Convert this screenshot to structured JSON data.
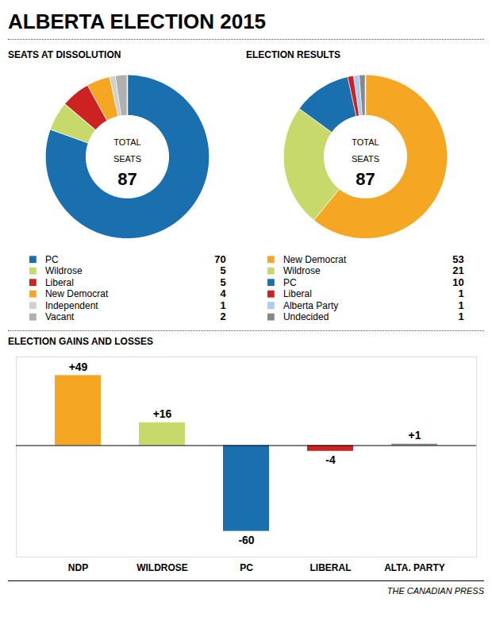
{
  "title": "ALBERTA ELECTION 2015",
  "caption": "THE CANADIAN PRESS",
  "chart_data": [
    {
      "type": "pie",
      "title": "SEATS AT DISSOLUTION",
      "categories": [
        "PC",
        "Wildrose",
        "Liberal",
        "New Democrat",
        "Independent",
        "Vacant"
      ],
      "values": [
        70,
        5,
        5,
        4,
        1,
        2
      ],
      "colors": [
        "#1a6faf",
        "#c8d96b",
        "#cc2222",
        "#f5a623",
        "#d0d0d0",
        "#b0b0b0"
      ],
      "data_labels": true,
      "annotations": [
        "TOTAL",
        "SEATS",
        "87"
      ]
    },
    {
      "type": "pie",
      "title": "ELECTION RESULTS",
      "categories": [
        "New Democrat",
        "Wildrose",
        "PC",
        "Liberal",
        "Alberta Party",
        "Undecided"
      ],
      "values": [
        53,
        21,
        10,
        1,
        1,
        1
      ],
      "colors": [
        "#f5a623",
        "#c8d96b",
        "#1a6faf",
        "#cc2222",
        "#aaccee",
        "#888888"
      ],
      "data_labels": true,
      "annotations": [
        "TOTAL",
        "SEATS",
        "87"
      ]
    },
    {
      "type": "bar",
      "title": "ELECTION GAINS AND LOSSES",
      "categories": [
        "NDP",
        "WILDROSE",
        "PC",
        "LIBERAL",
        "ALTA. PARTY"
      ],
      "values": [
        49,
        16,
        -60,
        -4,
        1
      ],
      "value_labels": [
        "+49",
        "+16",
        "-60",
        "-4",
        "+1"
      ],
      "colors": [
        "#f5a623",
        "#c8d96b",
        "#1a6faf",
        "#cc2222",
        "#888888"
      ],
      "ylim": [
        -78,
        62
      ],
      "tick_labels": "x",
      "data_labels": true
    }
  ]
}
